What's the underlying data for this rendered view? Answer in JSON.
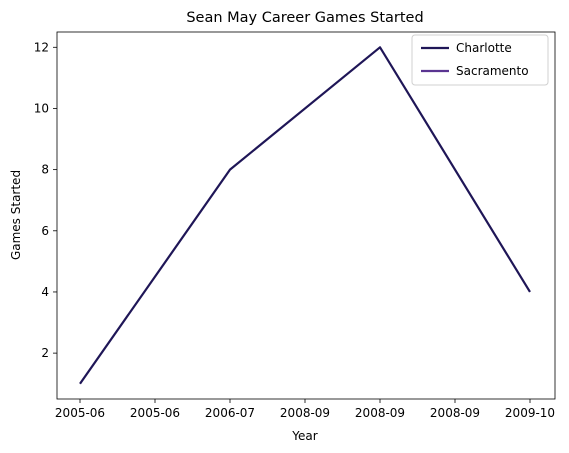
{
  "chart_data": {
    "type": "line",
    "title": "Sean May Career Games Started",
    "xlabel": "Year",
    "ylabel": "Games Started",
    "x_tick_labels": [
      "2005-06",
      "2005-06",
      "2006-07",
      "2008-09",
      "2008-09",
      "2008-09",
      "2009-10"
    ],
    "y_ticks": [
      2,
      4,
      6,
      8,
      10,
      12
    ],
    "ylim": [
      0.5,
      12.5
    ],
    "grid": false,
    "legend_position": "top-right",
    "series": [
      {
        "name": "Charlotte",
        "color": "#1f1657",
        "points": [
          {
            "x_index": 0,
            "y": 1
          },
          {
            "x_index": 2,
            "y": 8
          },
          {
            "x_index": 4,
            "y": 12
          },
          {
            "x_index": 6,
            "y": 4
          }
        ]
      },
      {
        "name": "Sacramento",
        "color": "#5a3491",
        "points": []
      }
    ]
  }
}
